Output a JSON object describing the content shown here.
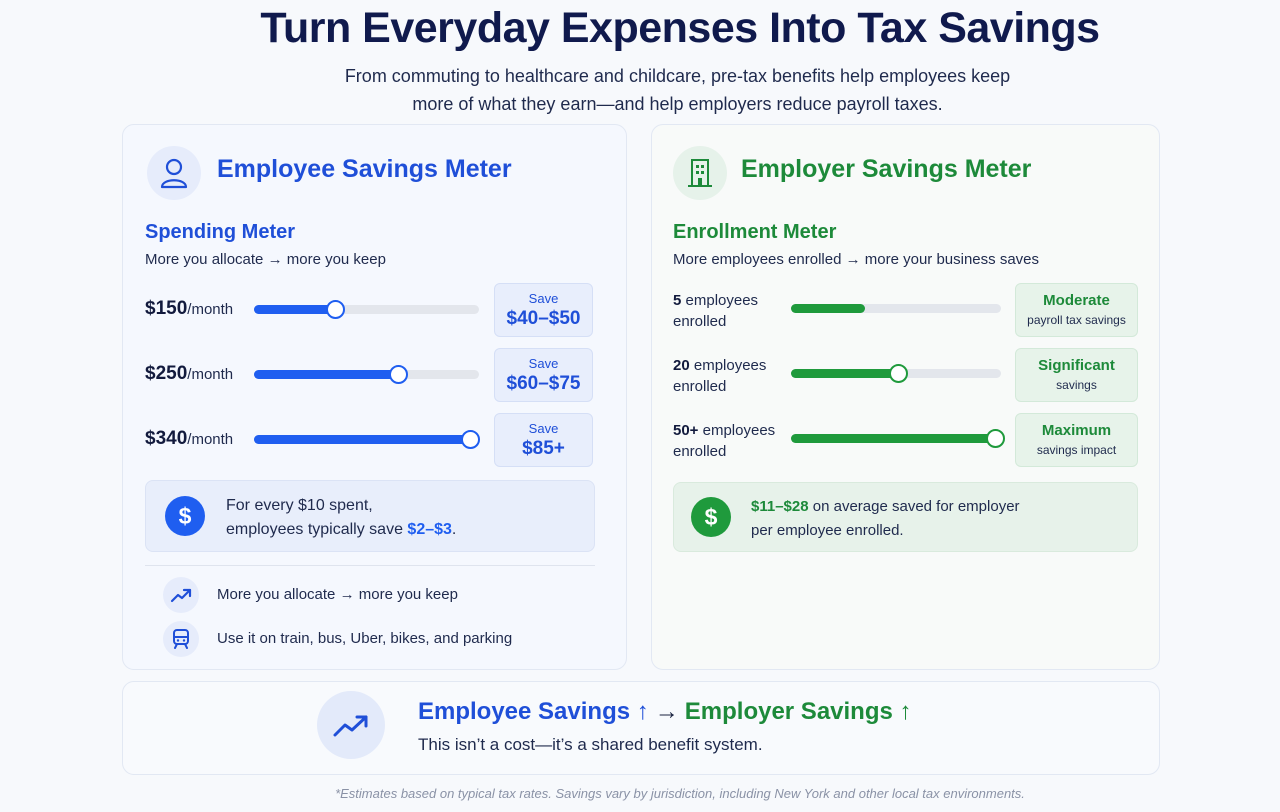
{
  "header": {
    "title": "Turn Everyday Expenses Into Tax Savings",
    "subtitle_line1": "From commuting to healthcare and childcare, pre-tax benefits help employees keep",
    "subtitle_line2": "more of what they earn—and help employers reduce payroll taxes."
  },
  "employee": {
    "title": "Employee Savings Meter",
    "icon": "user-icon",
    "meter_title": "Spending Meter",
    "meter_sub": "More you allocate → more you keep",
    "rows": [
      {
        "amount": "$150",
        "unit": "/month",
        "level": 0.36,
        "save_label": "Save",
        "save_value": "$40–$50"
      },
      {
        "amount": "$250",
        "unit": "/month",
        "level": 0.64,
        "save_label": "Save",
        "save_value": "$60–$75"
      },
      {
        "amount": "$340",
        "unit": "/month",
        "level": 0.96,
        "save_label": "Save",
        "save_value": "$85+"
      }
    ],
    "callout_line1": "For every $10 spent,",
    "callout_line2_pre": "employees typically save ",
    "callout_highlight": "$2–$3",
    "callout_line2_post": ".",
    "tips": [
      {
        "icon": "trend-up-icon",
        "text": "More you allocate → more you keep"
      },
      {
        "icon": "train-icon",
        "text": "Use it on train, bus, Uber, bikes, and parking"
      }
    ],
    "accent": "#1f5ef0"
  },
  "employer": {
    "title": "Employer Savings Meter",
    "icon": "building-icon",
    "meter_title": "Enrollment Meter",
    "meter_sub": "More employees enrolled → more your business saves",
    "rows": [
      {
        "count": "5",
        "label_rest": " employees",
        "label2": "enrolled",
        "level": 0.35,
        "show_thumb": false,
        "level_title": "Moderate",
        "level_sub": "payroll tax savings"
      },
      {
        "count": "20",
        "label_rest": " employees",
        "label2": "enrolled",
        "level": 0.51,
        "show_thumb": true,
        "level_title": "Significant",
        "level_sub": "savings"
      },
      {
        "count": "50+",
        "label_rest": " employees",
        "label2": "enrolled",
        "level": 0.97,
        "show_thumb": true,
        "level_title": "Maximum",
        "level_sub": "savings impact"
      }
    ],
    "callout_highlight": "$11–$28",
    "callout_line1_post": " on average saved for employer",
    "callout_line2": "per employee enrolled.",
    "accent": "#1f9a3c"
  },
  "bottom": {
    "icon": "trend-up-icon",
    "employee_part": "Employee Savings ↑",
    "arrow": "→",
    "employer_part": "Employer Savings ↑",
    "sub": "This isn’t a cost—it’s a shared benefit system."
  },
  "footnote": "*Estimates based on typical tax rates. Savings vary by jurisdiction, including New York and other local tax environments."
}
